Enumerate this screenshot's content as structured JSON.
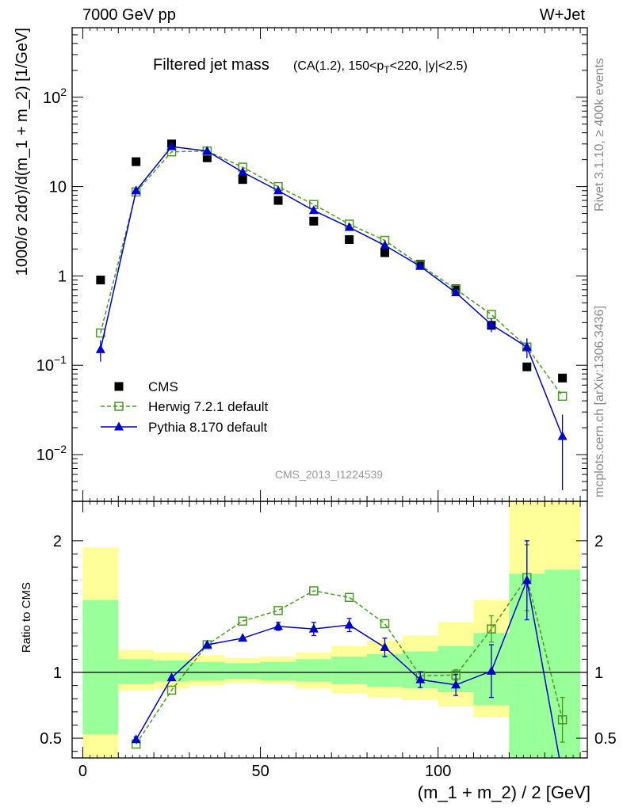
{
  "header": {
    "left_label": "7000 GeV pp",
    "right_label": "W+Jet",
    "side_label_top": "Rivet 3.1.10, ≥ 400k events",
    "side_label_bottom": "mcplots.cern.ch [arXiv:1306.3436]"
  },
  "chart_data": [
    {
      "type": "scatter",
      "panel": "main",
      "title": "Filtered jet mass",
      "subtitle": "(CA(1.2), 150<p_T<220, |y|<2.5)",
      "xlabel": "(m_1 + m_2) / 2 [GeV]",
      "ylabel": "1000/σ 2dσ)/d(m_1 + m_2) [1/GeV]",
      "watermark": "CMS_2013_I1224539",
      "xlim": [
        -3,
        142
      ],
      "ylim": [
        0.003,
        600
      ],
      "yscale": "log",
      "y_tick_labels": [
        "10^-2",
        "10^-1",
        "1",
        "10",
        "10^2"
      ],
      "x": [
        5,
        15,
        25,
        35,
        45,
        55,
        65,
        75,
        85,
        95,
        105,
        115,
        125,
        135
      ],
      "series": [
        {
          "name": "CMS",
          "marker": "filled-square",
          "color": "#000000",
          "values": [
            0.9,
            19,
            30,
            21,
            12,
            7,
            4.1,
            2.55,
            1.82,
            1.35,
            0.72,
            0.28,
            0.096,
            0.072
          ]
        },
        {
          "name": "Herwig 7.2.1 default",
          "marker": "open-square",
          "line": "dashed",
          "color": "#4a9a22",
          "values": [
            0.23,
            8.7,
            24.5,
            25,
            16.5,
            10,
            6.3,
            3.8,
            2.5,
            1.32,
            0.71,
            0.37,
            0.16,
            0.045
          ]
        },
        {
          "name": "Pythia 8.170 default",
          "marker": "filled-triangle",
          "line": "solid",
          "color": "#0000cc",
          "values": [
            0.15,
            9,
            28,
            25,
            14.5,
            9,
            5.4,
            3.5,
            2.2,
            1.28,
            0.65,
            0.285,
            0.16,
            0.016
          ],
          "errors": [
            0.04,
            0,
            0,
            0,
            0,
            0,
            0,
            0,
            0,
            0,
            0,
            0.05,
            0.04,
            0.012
          ]
        }
      ],
      "legend": "middle-left"
    },
    {
      "type": "line",
      "panel": "ratio",
      "ylabel": "Ratio to CMS",
      "xlabel": "(m_1 + m_2) / 2 [GeV]",
      "xlim": [
        -3,
        142
      ],
      "ylim": [
        0.35,
        2.3
      ],
      "x_tick_labels": [
        "0",
        "50",
        "100"
      ],
      "y_tick_labels": [
        "0.5",
        "1",
        "2"
      ],
      "reference": 1,
      "bands": {
        "edges": [
          0,
          10,
          20,
          30,
          40,
          50,
          60,
          70,
          80,
          90,
          100,
          110,
          120,
          130,
          140
        ],
        "green": [
          [
            0.53,
            1.55
          ],
          [
            0.91,
            1.1
          ],
          [
            0.93,
            1.09
          ],
          [
            0.94,
            1.08
          ],
          [
            0.95,
            1.07
          ],
          [
            0.94,
            1.08
          ],
          [
            0.93,
            1.1
          ],
          [
            0.91,
            1.12
          ],
          [
            0.89,
            1.14
          ],
          [
            0.88,
            1.16
          ],
          [
            0.85,
            1.2
          ],
          [
            0.75,
            1.3
          ],
          [
            0.35,
            1.75
          ],
          [
            0.35,
            1.78
          ]
        ],
        "yellow": [
          [
            0.35,
            1.95
          ],
          [
            0.86,
            1.17
          ],
          [
            0.88,
            1.15
          ],
          [
            0.9,
            1.13
          ],
          [
            0.92,
            1.11
          ],
          [
            0.91,
            1.12
          ],
          [
            0.88,
            1.15
          ],
          [
            0.84,
            1.2
          ],
          [
            0.81,
            1.24
          ],
          [
            0.79,
            1.28
          ],
          [
            0.74,
            1.38
          ],
          [
            0.66,
            1.55
          ],
          [
            0.35,
            2.3
          ],
          [
            0.35,
            2.3
          ]
        ]
      },
      "series": [
        {
          "name": "Herwig 7.2.1 default",
          "color": "#4a9a22",
          "values": [
            null,
            0.455,
            0.865,
            1.21,
            1.39,
            1.47,
            1.62,
            1.57,
            1.37,
            0.975,
            0.98,
            1.33,
            1.72,
            0.64
          ],
          "errors": [
            0,
            0,
            0,
            0,
            0,
            0,
            0,
            0,
            0,
            0,
            0.04,
            0.1,
            0.25,
            0.17
          ]
        },
        {
          "name": "Pythia 8.170 default",
          "color": "#0000cc",
          "values": [
            null,
            0.49,
            0.96,
            1.21,
            1.26,
            1.35,
            1.33,
            1.36,
            1.19,
            0.945,
            0.905,
            1.01,
            1.7,
            0.22
          ],
          "errors": [
            0,
            0.02,
            0,
            0,
            0,
            0.03,
            0.05,
            0.05,
            0.07,
            0.06,
            0.08,
            0.2,
            0.3,
            0.12
          ]
        }
      ]
    }
  ]
}
